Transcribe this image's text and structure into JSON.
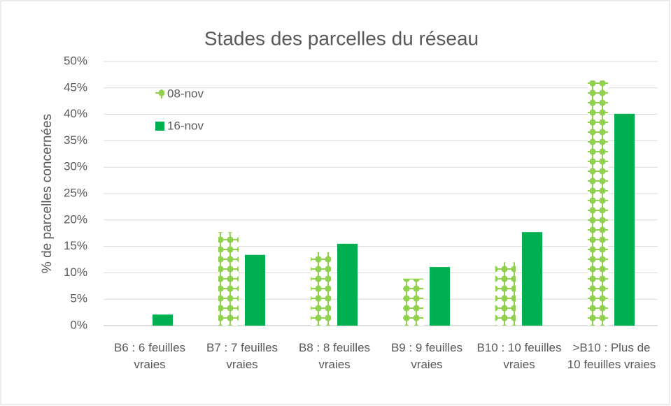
{
  "chart_data": {
    "type": "bar",
    "title": "Stades des parcelles du réseau",
    "y_label": "% de parcelles concernées",
    "categories": [
      "B6 : 6 feuilles vraies",
      "B7 : 7 feuilles vraies",
      "B8 : 8 feuilles vraies",
      "B9 : 9 feuilles vraies",
      "B10 : 10 feuilles vraies",
      ">B10 : Plus de 10 feuilles vraies"
    ],
    "series": [
      {
        "name": "08-nov",
        "color": "#92d050",
        "pattern": "dotted",
        "values": [
          0,
          17.7,
          13.9,
          8.9,
          12.0,
          46.4
        ]
      },
      {
        "name": "16-nov",
        "color": "#00b050",
        "values": [
          2.1,
          13.4,
          15.5,
          11.1,
          17.7,
          40.1
        ]
      }
    ],
    "ylim": [
      0,
      50
    ],
    "yticks": [
      {
        "value": 0,
        "label": "0%"
      },
      {
        "value": 5,
        "label": "5%"
      },
      {
        "value": 10,
        "label": "10%"
      },
      {
        "value": 15,
        "label": "15%"
      },
      {
        "value": 20,
        "label": "20%"
      },
      {
        "value": 25,
        "label": "25%"
      },
      {
        "value": 30,
        "label": "30%"
      },
      {
        "value": 35,
        "label": "35%"
      },
      {
        "value": 40,
        "label": "40%"
      },
      {
        "value": 45,
        "label": "45%"
      },
      {
        "value": 50,
        "label": "50%"
      }
    ],
    "grid": true,
    "legend": "top-left"
  }
}
